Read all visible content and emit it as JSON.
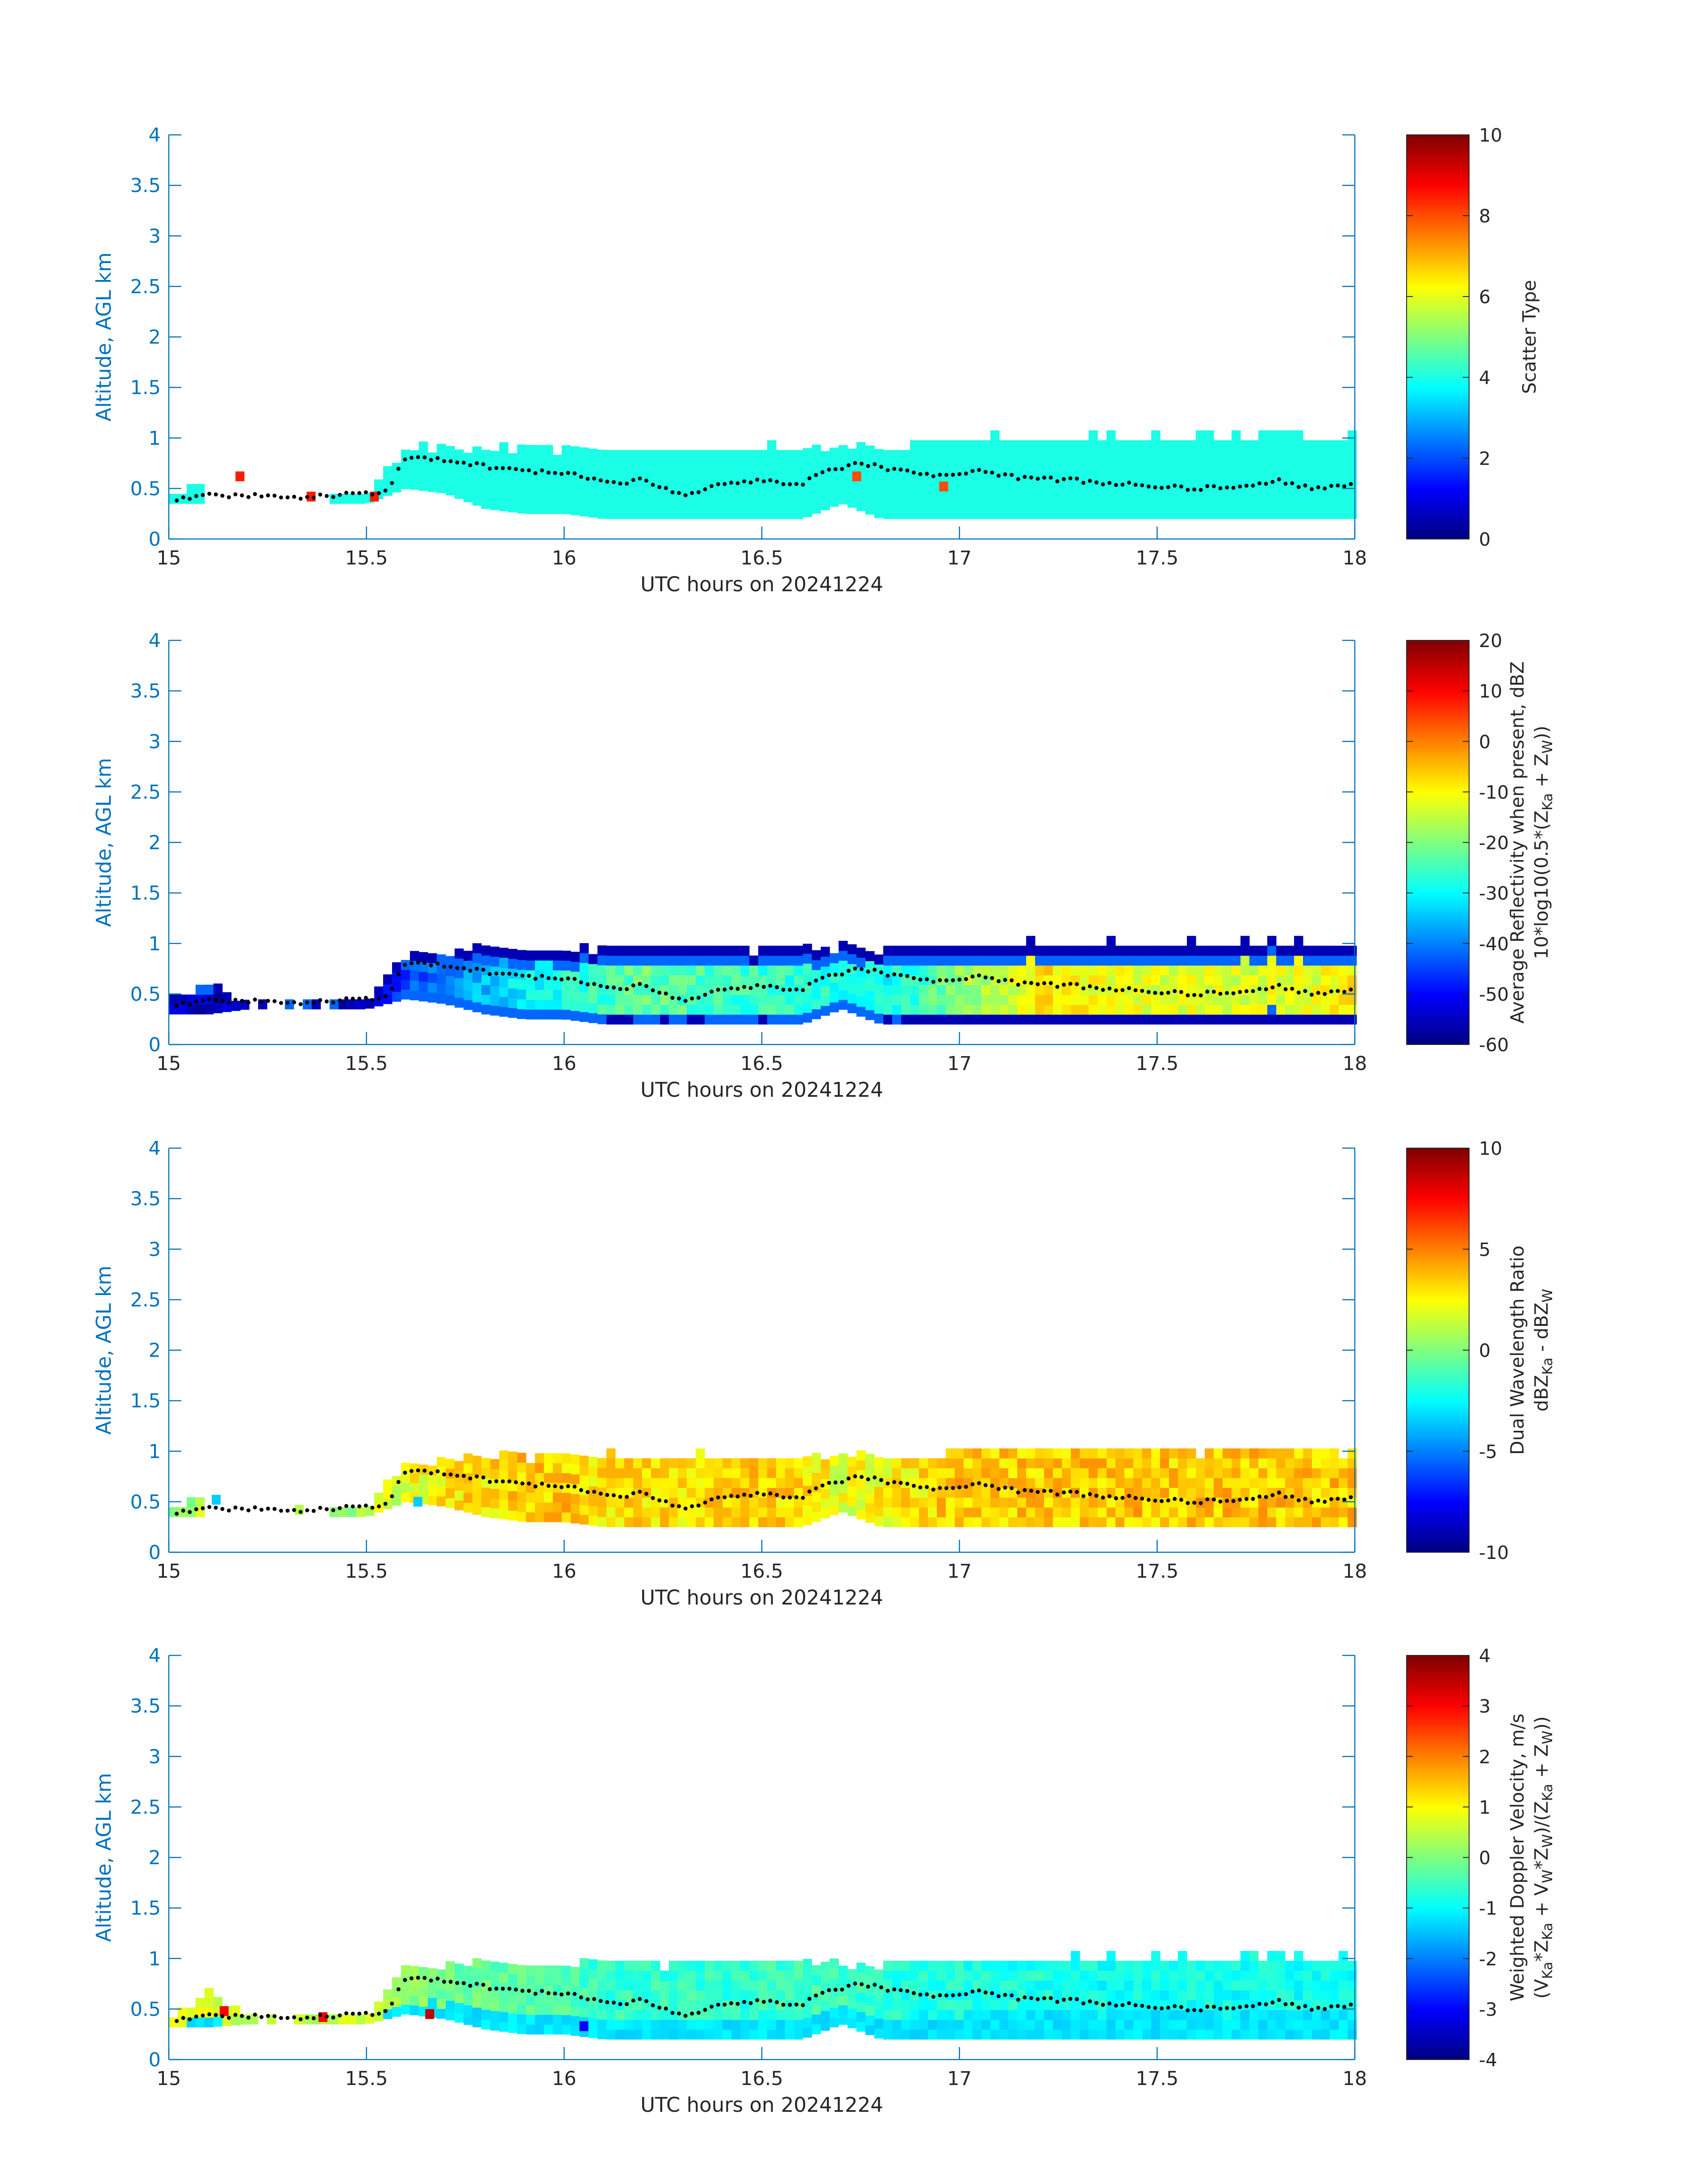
{
  "figure": {
    "colors": {
      "axis": "#0072BD",
      "colorbar_axis": "#262626",
      "text": "#262626",
      "marker": "#000000"
    }
  },
  "chart_data": [
    {
      "type": "heatmap",
      "title": "",
      "xlabel": "UTC hours on 20241224",
      "ylabel": "Altitude, AGL km",
      "xlim": [
        15,
        18
      ],
      "ylim": [
        0,
        4
      ],
      "xticks": [
        "15",
        "15.5",
        "16",
        "16.5",
        "17",
        "17.5",
        "18"
      ],
      "yticks": [
        "0",
        "0.5",
        "1",
        "1.5",
        "2",
        "2.5",
        "3",
        "3.5",
        "4"
      ],
      "colormap": "jet",
      "colorbar": {
        "label_lines": [
          "Scatter Type"
        ],
        "range": [
          0,
          10
        ],
        "ticks": [
          "0",
          "2",
          "4",
          "6",
          "8",
          "10"
        ]
      },
      "field": {
        "x": [
          15.0,
          15.1,
          15.2,
          15.3,
          15.4,
          15.5,
          15.6,
          15.7,
          15.8,
          15.9,
          16.0,
          16.1,
          16.2,
          16.3,
          16.4,
          16.5,
          16.6,
          16.7,
          16.8,
          16.9,
          17.0,
          17.1,
          17.2,
          17.3,
          17.4,
          17.5,
          17.6,
          17.7,
          17.8,
          17.9,
          18.0
        ],
        "bottom": [
          0.35,
          0.35,
          null,
          null,
          0.35,
          0.35,
          0.5,
          0.45,
          0.3,
          0.25,
          0.25,
          0.2,
          0.2,
          0.2,
          0.2,
          0.2,
          0.2,
          0.35,
          0.2,
          0.2,
          0.2,
          0.2,
          0.2,
          0.2,
          0.2,
          0.2,
          0.2,
          0.2,
          0.2,
          0.2,
          0.2
        ],
        "top": [
          0.45,
          0.65,
          null,
          null,
          0.45,
          0.5,
          0.95,
          0.95,
          0.95,
          0.95,
          0.95,
          0.92,
          0.92,
          0.92,
          0.92,
          0.95,
          0.95,
          0.95,
          0.95,
          1.0,
          1.05,
          1.05,
          1.05,
          1.05,
          1.05,
          1.05,
          1.05,
          1.05,
          1.1,
          1.05,
          1.05
        ],
        "value": [
          4,
          4,
          null,
          null,
          4,
          4,
          4,
          4,
          4,
          4,
          4,
          4,
          4,
          4,
          4,
          4,
          4,
          4,
          4,
          4,
          4,
          4,
          4,
          4,
          4,
          4,
          4,
          4,
          4,
          4,
          4
        ],
        "value_mode": "constant",
        "extra_cells": [
          {
            "x": 15.18,
            "y": 0.62,
            "v": 8.5
          },
          {
            "x": 15.36,
            "y": 0.42,
            "v": 8.5
          },
          {
            "x": 15.52,
            "y": 0.42,
            "v": 8.5
          },
          {
            "x": 16.74,
            "y": 0.62,
            "v": 8.0
          },
          {
            "x": 16.96,
            "y": 0.52,
            "v": 8.0
          }
        ]
      },
      "marker_line": {
        "x": [
          15.02,
          15.1,
          15.15,
          15.22,
          15.3,
          15.4,
          15.5,
          15.55,
          15.6,
          15.7,
          15.8,
          15.9,
          15.95,
          16.05,
          16.15,
          16.2,
          16.3,
          16.4,
          16.5,
          16.6,
          16.65,
          16.75,
          16.85,
          16.95,
          17.05,
          17.15,
          17.3,
          17.4,
          17.5,
          17.6,
          17.7,
          17.8,
          17.9,
          18.0
        ],
        "y": [
          0.38,
          0.45,
          0.42,
          0.43,
          0.4,
          0.43,
          0.45,
          0.48,
          0.8,
          0.78,
          0.72,
          0.66,
          0.68,
          0.62,
          0.55,
          0.6,
          0.42,
          0.55,
          0.57,
          0.55,
          0.65,
          0.75,
          0.67,
          0.62,
          0.69,
          0.6,
          0.58,
          0.55,
          0.52,
          0.5,
          0.52,
          0.58,
          0.5,
          0.55
        ]
      }
    },
    {
      "type": "heatmap",
      "title": "",
      "xlabel": "UTC hours on 20241224",
      "ylabel": "Altitude, AGL km",
      "xlim": [
        15,
        18
      ],
      "ylim": [
        0,
        4
      ],
      "xticks": [
        "15",
        "15.5",
        "16",
        "16.5",
        "17",
        "17.5",
        "18"
      ],
      "yticks": [
        "0",
        "0.5",
        "1",
        "1.5",
        "2",
        "2.5",
        "3",
        "3.5",
        "4"
      ],
      "colormap": "jet",
      "colorbar": {
        "label_lines": [
          "Average Reflectivity when present, dBZ",
          "10*log10(0.5*(Z_Ka + Z_W))"
        ],
        "range": [
          -60,
          20
        ],
        "ticks": [
          "-60",
          "-50",
          "-40",
          "-30",
          "-20",
          "-10",
          "0",
          "10",
          "20"
        ]
      },
      "field": {
        "x": [
          15.0,
          15.1,
          15.2,
          15.3,
          15.4,
          15.5,
          15.6,
          15.7,
          15.8,
          15.9,
          16.0,
          16.1,
          16.2,
          16.3,
          16.4,
          16.5,
          16.6,
          16.7,
          16.8,
          16.9,
          17.0,
          17.1,
          17.2,
          17.3,
          17.4,
          17.5,
          17.6,
          17.7,
          17.8,
          17.9,
          18.0
        ],
        "bottom": [
          0.3,
          0.3,
          0.35,
          0.35,
          0.35,
          0.35,
          0.45,
          0.4,
          0.3,
          0.25,
          0.25,
          0.2,
          0.2,
          0.2,
          0.2,
          0.2,
          0.2,
          0.35,
          0.2,
          0.2,
          0.2,
          0.2,
          0.2,
          0.2,
          0.2,
          0.2,
          0.2,
          0.2,
          0.2,
          0.2,
          0.2
        ],
        "top": [
          0.45,
          0.65,
          0.45,
          0.45,
          0.45,
          0.5,
          0.95,
          0.98,
          1.0,
          1.0,
          1.0,
          1.0,
          1.0,
          1.0,
          1.0,
          1.0,
          1.0,
          1.0,
          1.0,
          1.02,
          1.05,
          1.05,
          1.05,
          1.05,
          1.05,
          1.05,
          1.05,
          1.05,
          1.08,
          1.05,
          1.05
        ],
        "value": [
          -55,
          -55,
          -56,
          -56,
          -56,
          -55,
          -45,
          -40,
          -35,
          -30,
          -28,
          -25,
          -22,
          -24,
          -25,
          -26,
          -27,
          -28,
          -30,
          -26,
          -18,
          -15,
          -8,
          -10,
          -12,
          -12,
          -12,
          -13,
          -12,
          -12,
          -8
        ],
        "value_mode": "core_edge",
        "edge_value": -56,
        "extra_cells": []
      },
      "marker_line": {
        "x": [
          15.02,
          15.1,
          15.15,
          15.22,
          15.3,
          15.4,
          15.5,
          15.55,
          15.6,
          15.7,
          15.8,
          15.9,
          15.95,
          16.05,
          16.15,
          16.2,
          16.3,
          16.4,
          16.5,
          16.6,
          16.65,
          16.75,
          16.85,
          16.95,
          17.05,
          17.15,
          17.3,
          17.4,
          17.5,
          17.6,
          17.7,
          17.8,
          17.9,
          18.0
        ],
        "y": [
          0.38,
          0.45,
          0.42,
          0.43,
          0.4,
          0.43,
          0.45,
          0.48,
          0.8,
          0.78,
          0.72,
          0.66,
          0.68,
          0.62,
          0.55,
          0.6,
          0.42,
          0.55,
          0.57,
          0.55,
          0.65,
          0.75,
          0.67,
          0.62,
          0.69,
          0.6,
          0.58,
          0.55,
          0.52,
          0.5,
          0.52,
          0.58,
          0.5,
          0.55
        ]
      }
    },
    {
      "type": "heatmap",
      "title": "",
      "xlabel": "UTC hours on 20241224",
      "ylabel": "Altitude, AGL km",
      "xlim": [
        15,
        18
      ],
      "ylim": [
        0,
        4
      ],
      "xticks": [
        "15",
        "15.5",
        "16",
        "16.5",
        "17",
        "17.5",
        "18"
      ],
      "yticks": [
        "0",
        "0.5",
        "1",
        "1.5",
        "2",
        "2.5",
        "3",
        "3.5",
        "4"
      ],
      "colormap": "jet",
      "colorbar": {
        "label_lines": [
          "Dual Wavelength Ratio",
          "dBZ_Ka - dBZ_W"
        ],
        "range": [
          -10,
          10
        ],
        "ticks": [
          "-10",
          "-5",
          "0",
          "5",
          "10"
        ]
      },
      "field": {
        "x": [
          15.0,
          15.1,
          15.2,
          15.3,
          15.4,
          15.5,
          15.6,
          15.7,
          15.8,
          15.9,
          16.0,
          16.1,
          16.2,
          16.3,
          16.4,
          16.5,
          16.6,
          16.7,
          16.8,
          16.9,
          17.0,
          17.1,
          17.2,
          17.3,
          17.4,
          17.5,
          17.6,
          17.7,
          17.8,
          17.9,
          18.0
        ],
        "bottom": [
          0.35,
          0.35,
          null,
          null,
          0.35,
          0.35,
          0.5,
          0.45,
          0.35,
          0.3,
          0.3,
          0.25,
          0.25,
          0.25,
          0.25,
          0.25,
          0.25,
          0.4,
          0.25,
          0.25,
          0.25,
          0.25,
          0.25,
          0.25,
          0.25,
          0.25,
          0.25,
          0.25,
          0.25,
          0.25,
          0.25
        ],
        "top": [
          0.45,
          0.65,
          null,
          null,
          0.45,
          0.5,
          0.9,
          0.95,
          1.0,
          1.0,
          1.0,
          1.0,
          1.0,
          1.0,
          1.0,
          1.0,
          1.0,
          1.0,
          1.0,
          1.02,
          1.05,
          1.05,
          1.05,
          1.05,
          1.05,
          1.05,
          1.05,
          1.05,
          1.08,
          1.05,
          1.05
        ],
        "value": [
          1,
          1,
          null,
          null,
          1,
          1,
          2,
          3,
          3,
          3.5,
          3.5,
          3,
          3,
          3,
          3.5,
          3.5,
          3,
          2,
          2.5,
          3,
          3.5,
          3.5,
          3.5,
          3.5,
          3.5,
          3.5,
          3.5,
          3.5,
          3.5,
          3.5,
          3.5
        ],
        "value_mode": "core_bottom_edge",
        "edge_value": 6.5,
        "extra_cells": [
          {
            "x": 15.33,
            "y": 0.42,
            "v": 1.0
          },
          {
            "x": 15.12,
            "y": 0.52,
            "v": -3.5
          },
          {
            "x": 15.63,
            "y": 0.5,
            "v": -3.5
          }
        ]
      },
      "marker_line": {
        "x": [
          15.02,
          15.1,
          15.15,
          15.22,
          15.3,
          15.4,
          15.5,
          15.55,
          15.6,
          15.7,
          15.8,
          15.9,
          15.95,
          16.05,
          16.15,
          16.2,
          16.3,
          16.4,
          16.5,
          16.6,
          16.65,
          16.75,
          16.85,
          16.95,
          17.05,
          17.15,
          17.3,
          17.4,
          17.5,
          17.6,
          17.7,
          17.8,
          17.9,
          18.0
        ],
        "y": [
          0.38,
          0.45,
          0.42,
          0.43,
          0.4,
          0.43,
          0.45,
          0.48,
          0.8,
          0.78,
          0.72,
          0.66,
          0.68,
          0.62,
          0.55,
          0.6,
          0.42,
          0.55,
          0.57,
          0.55,
          0.65,
          0.75,
          0.67,
          0.62,
          0.69,
          0.6,
          0.58,
          0.55,
          0.52,
          0.5,
          0.52,
          0.58,
          0.5,
          0.55
        ]
      }
    },
    {
      "type": "heatmap",
      "title": "",
      "xlabel": "UTC hours on 20241224",
      "ylabel": "Altitude, AGL km",
      "xlim": [
        15,
        18
      ],
      "ylim": [
        0,
        4
      ],
      "xticks": [
        "15",
        "15.5",
        "16",
        "16.5",
        "17",
        "17.5",
        "18"
      ],
      "yticks": [
        "0",
        "0.5",
        "1",
        "1.5",
        "2",
        "2.5",
        "3",
        "3.5",
        "4"
      ],
      "colormap": "jet",
      "colorbar": {
        "label_lines": [
          "Weighted Doppler Velocity, m/s",
          "(V_Ka*Z_Ka + V_W*Z_W)/(Z_Ka + Z_W))"
        ],
        "range": [
          -4,
          4
        ],
        "ticks": [
          "-4",
          "-3",
          "-2",
          "-1",
          "0",
          "1",
          "2",
          "3",
          "4"
        ]
      },
      "field": {
        "x": [
          15.0,
          15.1,
          15.2,
          15.3,
          15.4,
          15.5,
          15.6,
          15.7,
          15.8,
          15.9,
          16.0,
          16.1,
          16.2,
          16.3,
          16.4,
          16.5,
          16.6,
          16.7,
          16.8,
          16.9,
          17.0,
          17.1,
          17.2,
          17.3,
          17.4,
          17.5,
          17.6,
          17.7,
          17.8,
          17.9,
          18.0
        ],
        "bottom": [
          0.32,
          0.32,
          0.35,
          0.35,
          0.35,
          0.35,
          0.45,
          0.4,
          0.3,
          0.25,
          0.25,
          0.2,
          0.2,
          0.2,
          0.2,
          0.2,
          0.2,
          0.35,
          0.2,
          0.2,
          0.2,
          0.2,
          0.2,
          0.2,
          0.2,
          0.2,
          0.2,
          0.2,
          0.2,
          0.2,
          0.2
        ],
        "top": [
          0.45,
          0.7,
          0.45,
          0.45,
          0.45,
          0.5,
          0.95,
          0.95,
          1.0,
          1.0,
          1.0,
          1.0,
          1.0,
          1.0,
          1.0,
          1.0,
          1.0,
          1.0,
          1.0,
          1.02,
          1.05,
          1.05,
          1.05,
          1.05,
          1.05,
          1.05,
          1.05,
          1.05,
          1.08,
          1.05,
          1.05
        ],
        "value": [
          0.8,
          0.8,
          0.5,
          0.5,
          0.5,
          0.5,
          0.2,
          -0.2,
          -0.2,
          -0.3,
          -0.4,
          -0.6,
          -0.6,
          -0.6,
          -0.7,
          -0.6,
          -0.5,
          -0.5,
          -0.7,
          -0.8,
          -0.8,
          -0.8,
          -0.8,
          -0.9,
          -0.9,
          -0.9,
          -0.9,
          -0.9,
          -0.9,
          -0.9,
          -0.9
        ],
        "value_mode": "core_lower",
        "edge_value": -1.2,
        "extra_cells": [
          {
            "x": 15.14,
            "y": 0.48,
            "v": 3.0
          },
          {
            "x": 15.39,
            "y": 0.42,
            "v": 3.0
          },
          {
            "x": 15.66,
            "y": 0.45,
            "v": 3.5
          },
          {
            "x": 16.05,
            "y": 0.33,
            "v": -3.0
          }
        ]
      },
      "marker_line": {
        "x": [
          15.02,
          15.1,
          15.15,
          15.22,
          15.3,
          15.4,
          15.5,
          15.55,
          15.6,
          15.7,
          15.8,
          15.9,
          15.95,
          16.05,
          16.15,
          16.2,
          16.3,
          16.4,
          16.5,
          16.6,
          16.65,
          16.75,
          16.85,
          16.95,
          17.05,
          17.15,
          17.3,
          17.4,
          17.5,
          17.6,
          17.7,
          17.8,
          17.9,
          18.0
        ],
        "y": [
          0.38,
          0.45,
          0.42,
          0.43,
          0.4,
          0.43,
          0.45,
          0.48,
          0.8,
          0.78,
          0.72,
          0.66,
          0.68,
          0.62,
          0.55,
          0.6,
          0.42,
          0.55,
          0.57,
          0.55,
          0.65,
          0.75,
          0.67,
          0.62,
          0.69,
          0.6,
          0.58,
          0.55,
          0.52,
          0.5,
          0.52,
          0.58,
          0.5,
          0.55
        ]
      }
    }
  ]
}
